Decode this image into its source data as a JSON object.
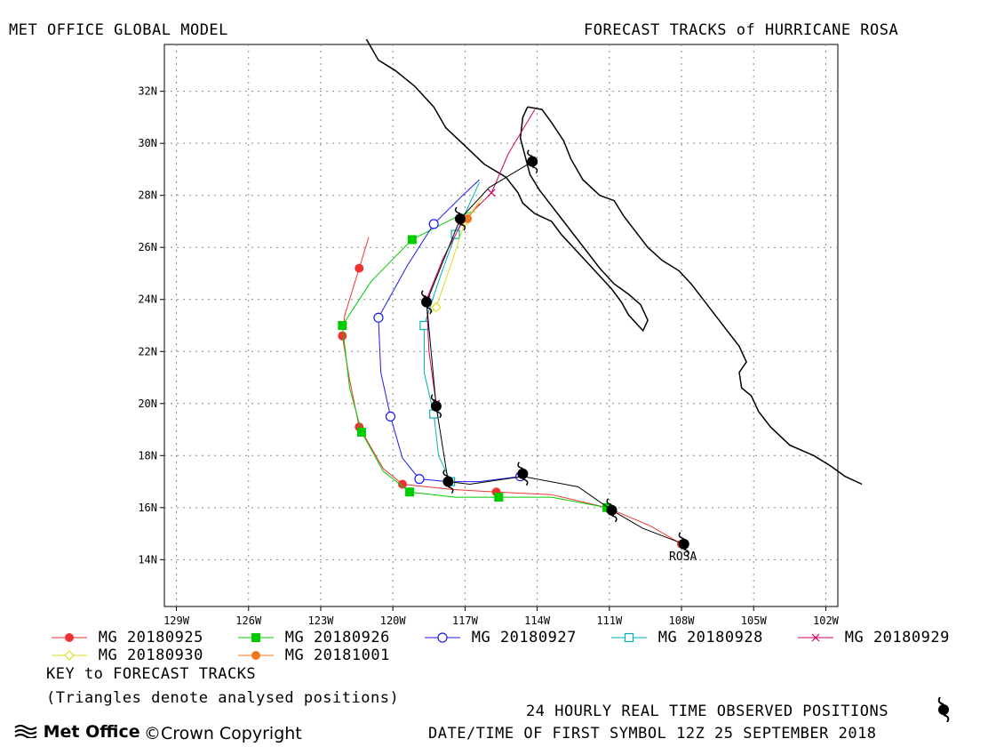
{
  "header": {
    "left_title": "MET OFFICE GLOBAL MODEL",
    "right_title": "FORECAST TRACKS of HURRICANE ROSA"
  },
  "map": {
    "lon_range": [
      -129.5,
      -101.5
    ],
    "lat_range": [
      12.2,
      33.8
    ],
    "lon_ticks": [
      -129,
      -126,
      -123,
      -120,
      -117,
      -114,
      -111,
      -108,
      -105,
      -102
    ],
    "lon_tick_labels": [
      "129W",
      "126W",
      "123W",
      "120W",
      "117W",
      "114W",
      "111W",
      "108W",
      "105W",
      "102W"
    ],
    "lat_ticks": [
      14,
      16,
      18,
      20,
      22,
      24,
      26,
      28,
      30,
      32
    ],
    "lat_tick_labels": [
      "14N",
      "16N",
      "18N",
      "20N",
      "22N",
      "24N",
      "26N",
      "28N",
      "30N",
      "32N"
    ],
    "grid": true,
    "storm_label": "ROSA",
    "coastline_mainland": [
      [
        -121.1,
        34.0
      ],
      [
        -120.6,
        33.2
      ],
      [
        -119.9,
        32.8
      ],
      [
        -119.1,
        32.2
      ],
      [
        -118.3,
        31.4
      ],
      [
        -117.8,
        30.6
      ],
      [
        -117.0,
        29.9
      ],
      [
        -116.2,
        29.2
      ],
      [
        -115.3,
        28.7
      ],
      [
        -114.8,
        28.1
      ],
      [
        -114.6,
        27.7
      ],
      [
        -114.1,
        27.3
      ],
      [
        -113.4,
        27.0
      ],
      [
        -113.0,
        26.5
      ],
      [
        -112.4,
        25.9
      ],
      [
        -111.9,
        25.4
      ],
      [
        -111.4,
        24.9
      ],
      [
        -110.9,
        24.4
      ],
      [
        -110.5,
        23.9
      ],
      [
        -110.2,
        23.4
      ],
      [
        -109.8,
        23.0
      ],
      [
        -109.6,
        22.8
      ],
      [
        -109.4,
        23.2
      ],
      [
        -109.7,
        23.8
      ],
      [
        -110.2,
        24.2
      ],
      [
        -110.8,
        24.6
      ],
      [
        -111.4,
        25.2
      ],
      [
        -111.9,
        25.8
      ],
      [
        -112.4,
        26.4
      ],
      [
        -112.9,
        27.0
      ],
      [
        -113.4,
        27.6
      ],
      [
        -113.9,
        28.2
      ],
      [
        -114.3,
        28.8
      ],
      [
        -114.5,
        29.5
      ],
      [
        -114.7,
        30.2
      ],
      [
        -114.6,
        31.0
      ],
      [
        -114.4,
        31.4
      ]
    ],
    "coastline_gulf_east": [
      [
        -114.4,
        31.4
      ],
      [
        -113.8,
        31.3
      ],
      [
        -113.4,
        30.8
      ],
      [
        -112.9,
        30.1
      ],
      [
        -112.6,
        29.4
      ],
      [
        -112.1,
        28.6
      ],
      [
        -111.4,
        28.0
      ],
      [
        -110.8,
        27.8
      ],
      [
        -110.4,
        27.2
      ],
      [
        -109.9,
        26.6
      ],
      [
        -109.4,
        26.0
      ],
      [
        -108.8,
        25.5
      ],
      [
        -108.1,
        25.1
      ],
      [
        -107.6,
        24.6
      ],
      [
        -107.1,
        24.0
      ],
      [
        -106.6,
        23.4
      ],
      [
        -106.1,
        22.8
      ],
      [
        -105.6,
        22.2
      ],
      [
        -105.3,
        21.6
      ],
      [
        -105.6,
        21.2
      ],
      [
        -105.5,
        20.6
      ],
      [
        -105.1,
        20.3
      ],
      [
        -104.8,
        19.7
      ],
      [
        -104.3,
        19.1
      ],
      [
        -103.5,
        18.4
      ],
      [
        -102.5,
        18.0
      ],
      [
        -101.8,
        17.6
      ],
      [
        -101.2,
        17.2
      ],
      [
        -100.5,
        16.9
      ]
    ],
    "observed_positions": [
      [
        -107.9,
        14.6
      ],
      [
        -110.9,
        15.9
      ],
      [
        -114.6,
        17.3
      ],
      [
        -117.7,
        17.0
      ],
      [
        -118.2,
        19.9
      ],
      [
        -118.6,
        23.9
      ],
      [
        -117.2,
        27.1
      ],
      [
        -114.2,
        29.3
      ]
    ],
    "observed_track": [
      [
        -107.9,
        14.6
      ],
      [
        -109.6,
        15.2
      ],
      [
        -110.9,
        15.9
      ],
      [
        -112.3,
        16.8
      ],
      [
        -114.6,
        17.2
      ],
      [
        -116.8,
        16.9
      ],
      [
        -117.7,
        17.0
      ],
      [
        -118.2,
        19.9
      ],
      [
        -118.6,
        23.9
      ],
      [
        -117.2,
        27.1
      ],
      [
        -116.0,
        28.3
      ],
      [
        -114.2,
        29.3
      ]
    ]
  },
  "legend": {
    "items": [
      {
        "label": "MG 20180925",
        "color": "#ee3333",
        "symbol": "filled-circle"
      },
      {
        "label": "MG 20180926",
        "color": "#00cc00",
        "symbol": "filled-square"
      },
      {
        "label": "MG 20180927",
        "color": "#1a1aee",
        "symbol": "open-circle"
      },
      {
        "label": "MG 20180928",
        "color": "#00b3b3",
        "symbol": "open-square"
      },
      {
        "label": "MG 20180929",
        "color": "#cc0066",
        "symbol": "cross"
      },
      {
        "label": "MG 20180930",
        "color": "#dddd22",
        "symbol": "open-diamond"
      },
      {
        "label": "MG 20181001",
        "color": "#ee7722",
        "symbol": "filled-circle"
      }
    ],
    "key_title": "KEY to FORECAST TRACKS",
    "key_note": "(Triangles denote analysed positions)"
  },
  "footer": {
    "observed_note": "24 HOURLY REAL TIME OBSERVED POSITIONS",
    "first_symbol": "DATE/TIME OF FIRST SYMBOL 12Z 25 SEPTEMBER 2018",
    "logo_text": "Met Office",
    "copyright": "©Crown Copyright"
  },
  "chart_data": {
    "type": "scatter",
    "series": [
      {
        "name": "MG 20180925",
        "points": [
          [
            -108.0,
            14.6
          ],
          [
            -111.1,
            16.0
          ],
          [
            -115.7,
            16.6
          ],
          [
            -119.6,
            16.9
          ],
          [
            -121.4,
            19.1
          ],
          [
            -122.1,
            22.6
          ],
          [
            -121.4,
            25.2
          ]
        ],
        "line": [
          [
            -108.0,
            14.6
          ],
          [
            -109.3,
            15.3
          ],
          [
            -111.1,
            16.0
          ],
          [
            -113.4,
            16.5
          ],
          [
            -115.7,
            16.6
          ],
          [
            -117.6,
            16.7
          ],
          [
            -119.6,
            16.9
          ],
          [
            -120.4,
            17.5
          ],
          [
            -121.4,
            19.1
          ],
          [
            -121.8,
            20.9
          ],
          [
            -122.1,
            22.6
          ],
          [
            -122.0,
            23.4
          ],
          [
            -121.4,
            25.2
          ],
          [
            -121.0,
            26.4
          ]
        ]
      },
      {
        "name": "MG 20180926",
        "points": [
          [
            -111.1,
            16.0
          ],
          [
            -115.6,
            16.4
          ],
          [
            -119.3,
            16.6
          ],
          [
            -121.3,
            18.9
          ],
          [
            -122.1,
            23.0
          ],
          [
            -119.2,
            26.3
          ]
        ],
        "line": [
          [
            -111.1,
            16.0
          ],
          [
            -113.4,
            16.4
          ],
          [
            -115.6,
            16.4
          ],
          [
            -117.4,
            16.4
          ],
          [
            -119.3,
            16.6
          ],
          [
            -120.4,
            17.4
          ],
          [
            -121.3,
            18.9
          ],
          [
            -121.8,
            20.6
          ],
          [
            -122.1,
            23.0
          ],
          [
            -120.9,
            24.7
          ],
          [
            -119.2,
            26.3
          ],
          [
            -117.3,
            27.2
          ],
          [
            -116.6,
            27.4
          ]
        ]
      },
      {
        "name": "MG 20180927",
        "points": [
          [
            -114.7,
            17.2
          ],
          [
            -118.9,
            17.1
          ],
          [
            -120.1,
            19.5
          ],
          [
            -120.6,
            23.3
          ],
          [
            -118.3,
            26.9
          ]
        ],
        "line": [
          [
            -114.7,
            17.2
          ],
          [
            -116.4,
            17.0
          ],
          [
            -117.7,
            17.0
          ],
          [
            -118.9,
            17.1
          ],
          [
            -119.6,
            17.9
          ],
          [
            -120.1,
            19.5
          ],
          [
            -120.5,
            21.2
          ],
          [
            -120.6,
            23.3
          ],
          [
            -119.4,
            25.3
          ],
          [
            -118.3,
            26.9
          ],
          [
            -117.1,
            28.0
          ],
          [
            -116.4,
            28.6
          ]
        ]
      },
      {
        "name": "MG 20180928",
        "points": [
          [
            -117.6,
            17.0
          ],
          [
            -118.3,
            19.6
          ],
          [
            -118.7,
            23.0
          ],
          [
            -117.4,
            26.5
          ]
        ],
        "line": [
          [
            -117.6,
            17.0
          ],
          [
            -118.1,
            18.0
          ],
          [
            -118.3,
            19.6
          ],
          [
            -118.7,
            21.2
          ],
          [
            -118.7,
            23.0
          ],
          [
            -118.1,
            24.7
          ],
          [
            -117.4,
            26.5
          ],
          [
            -116.4,
            28.5
          ]
        ]
      },
      {
        "name": "MG 20180929",
        "points": [
          [
            -118.2,
            20.0
          ],
          [
            -118.6,
            24.0
          ],
          [
            -117.1,
            27.0
          ],
          [
            -115.9,
            28.1
          ]
        ],
        "line": [
          [
            -118.2,
            20.0
          ],
          [
            -118.5,
            22.0
          ],
          [
            -118.6,
            24.0
          ],
          [
            -117.9,
            25.6
          ],
          [
            -117.1,
            27.0
          ],
          [
            -115.9,
            28.1
          ],
          [
            -115.2,
            29.6
          ],
          [
            -114.1,
            31.3
          ]
        ]
      },
      {
        "name": "MG 20180930",
        "points": [
          [
            -118.2,
            23.7
          ],
          [
            -117.0,
            27.0
          ]
        ],
        "line": [
          [
            -118.5,
            23.4
          ],
          [
            -118.2,
            23.7
          ],
          [
            -117.6,
            25.3
          ],
          [
            -117.0,
            27.0
          ],
          [
            -116.3,
            27.9
          ]
        ]
      },
      {
        "name": "MG 20181001",
        "points": [
          [
            -116.9,
            27.1
          ]
        ],
        "line": [
          [
            -117.2,
            26.8
          ],
          [
            -116.9,
            27.1
          ],
          [
            -116.4,
            27.7
          ]
        ]
      }
    ]
  }
}
